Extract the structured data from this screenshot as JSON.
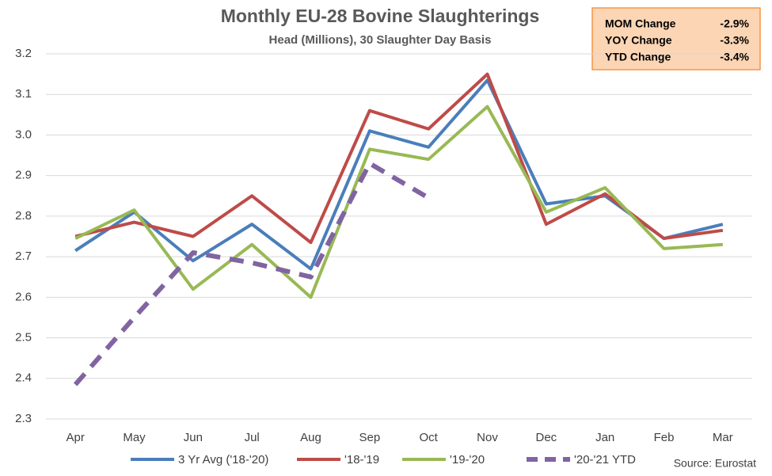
{
  "chart_data": {
    "type": "line",
    "title": "Monthly EU-28 Bovine Slaughterings",
    "subtitle": "Head (Millions), 30 Slaughter Day Basis",
    "categories": [
      "Apr",
      "May",
      "Jun",
      "Jul",
      "Aug",
      "Sep",
      "Oct",
      "Nov",
      "Dec",
      "Jan",
      "Feb",
      "Mar"
    ],
    "series": [
      {
        "name": "3 Yr Avg ('18-'20)",
        "color": "#4a7ebb",
        "values": [
          2.715,
          2.81,
          2.69,
          2.78,
          2.67,
          3.01,
          2.97,
          3.135,
          2.83,
          2.85,
          2.745,
          2.78
        ]
      },
      {
        "name": "'18-'19",
        "color": "#be4b48",
        "values": [
          2.75,
          2.785,
          2.75,
          2.85,
          2.735,
          3.06,
          3.015,
          3.15,
          2.78,
          2.855,
          2.745,
          2.765
        ]
      },
      {
        "name": "'19-'20",
        "color": "#98b954",
        "values": [
          2.745,
          2.815,
          2.62,
          2.73,
          2.6,
          2.965,
          2.94,
          3.07,
          2.81,
          2.87,
          2.72,
          2.73
        ]
      },
      {
        "name": "'20-'21 YTD",
        "color": "#8064a2",
        "dashed": true,
        "values": [
          2.385,
          2.55,
          2.71,
          2.685,
          2.65,
          2.93,
          2.845,
          null,
          null,
          null,
          null,
          null
        ]
      }
    ],
    "ylim": [
      2.3,
      3.2
    ],
    "yticks": [
      2.3,
      2.4,
      2.5,
      2.6,
      2.7,
      2.8,
      2.9,
      {
        "value": 3,
        "label": "3.0"
      },
      3.1,
      3.2
    ],
    "grid": true,
    "legend": "bottom",
    "source": "Source: Eurostat",
    "summary": [
      {
        "label": "MOM Change",
        "value": "-2.9%"
      },
      {
        "label": "YOY Change",
        "value": "-3.3%"
      },
      {
        "label": "YTD Change",
        "value": "-3.4%"
      }
    ]
  }
}
